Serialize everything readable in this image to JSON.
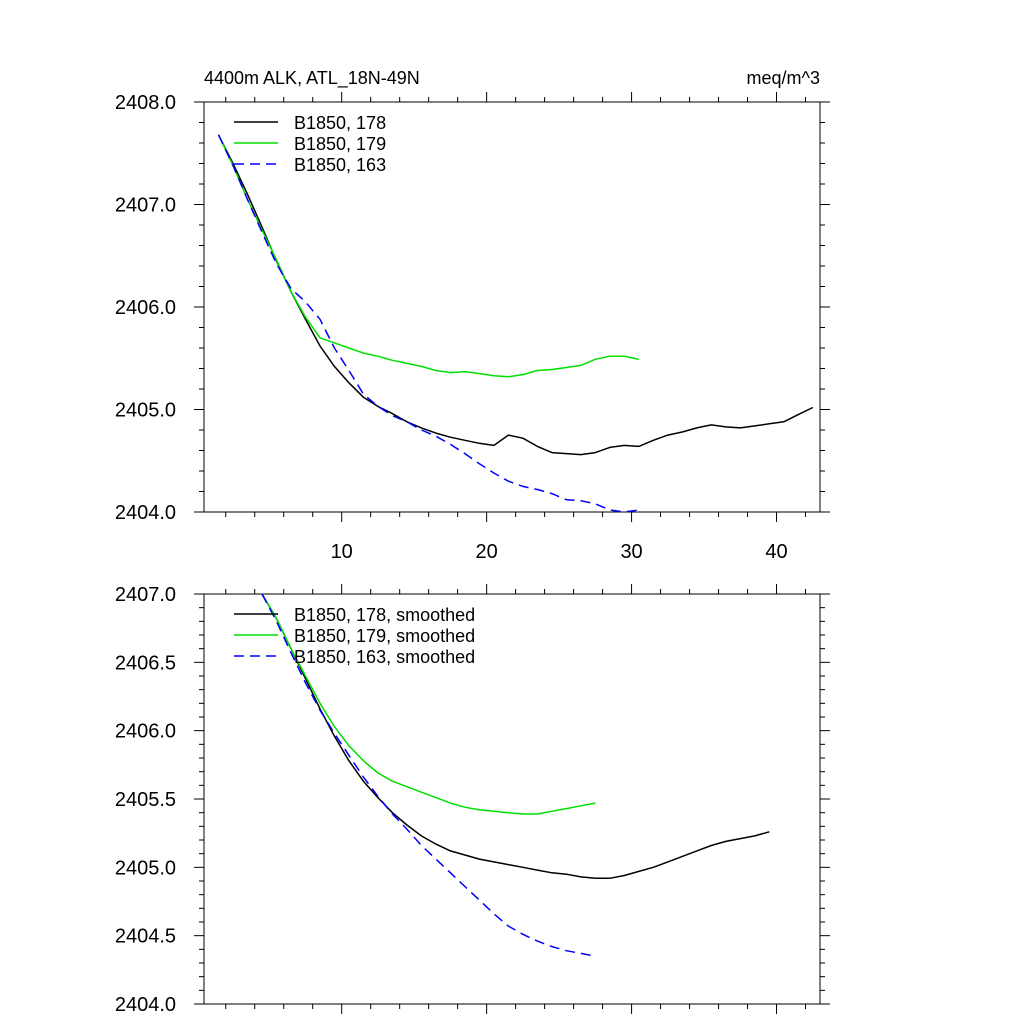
{
  "chart_data": [
    {
      "type": "line",
      "title_left": "4400m ALK, ATL_18N-49N",
      "title_right": "meq/m^3",
      "xlim": [
        0.5,
        43
      ],
      "ylim": [
        2404.0,
        2408.0
      ],
      "y_ticks": [
        2404.0,
        2405.0,
        2406.0,
        2407.0,
        2408.0
      ],
      "y_tick_labels": [
        "2404.0",
        "2405.0",
        "2406.0",
        "2407.0",
        "2408.0"
      ],
      "x_ticks": [
        10,
        20,
        30,
        40
      ],
      "x_tick_labels": [
        "10",
        "20",
        "30",
        "40"
      ],
      "legend_position": "top-left",
      "series": [
        {
          "name": "B1850, 178",
          "color": "#000000",
          "dash": "solid",
          "x": [
            1.5,
            2.5,
            3.5,
            4.5,
            5.5,
            6.5,
            7.5,
            8.5,
            9.5,
            10.5,
            11.5,
            12.5,
            13.5,
            14.5,
            15.5,
            16.5,
            17.5,
            18.5,
            19.5,
            20.5,
            21.5,
            22.5,
            23.5,
            24.5,
            25.5,
            26.5,
            27.5,
            28.5,
            29.5,
            30.5,
            31.5,
            32.5,
            33.5,
            34.5,
            35.5,
            36.5,
            37.5,
            38.5,
            39.5,
            40.5,
            41.5,
            42.5
          ],
          "y": [
            2407.68,
            2407.4,
            2407.1,
            2406.78,
            2406.45,
            2406.15,
            2405.88,
            2405.62,
            2405.42,
            2405.26,
            2405.12,
            2405.03,
            2404.96,
            2404.88,
            2404.82,
            2404.77,
            2404.73,
            2404.7,
            2404.67,
            2404.65,
            2404.75,
            2404.72,
            2404.64,
            2404.58,
            2404.57,
            2404.56,
            2404.58,
            2404.63,
            2404.65,
            2404.64,
            2404.7,
            2404.75,
            2404.78,
            2404.82,
            2404.85,
            2404.83,
            2404.82,
            2404.84,
            2404.86,
            2404.88,
            2404.95,
            2405.02
          ]
        },
        {
          "name": "B1850, 179",
          "color": "#00e000",
          "dash": "solid",
          "x": [
            1.5,
            2.5,
            3.5,
            4.5,
            5.5,
            6.5,
            7.5,
            8.5,
            9.5,
            10.5,
            11.5,
            12.5,
            13.5,
            14.5,
            15.5,
            16.5,
            17.5,
            18.5,
            19.5,
            20.5,
            21.5,
            22.5,
            23.5,
            24.5,
            25.5,
            26.5,
            27.5,
            28.5,
            29.5,
            30.5
          ],
          "y": [
            2407.68,
            2407.38,
            2407.05,
            2406.75,
            2406.46,
            2406.15,
            2405.9,
            2405.7,
            2405.65,
            2405.6,
            2405.55,
            2405.52,
            2405.48,
            2405.45,
            2405.42,
            2405.38,
            2405.36,
            2405.37,
            2405.35,
            2405.33,
            2405.32,
            2405.34,
            2405.38,
            2405.39,
            2405.41,
            2405.43,
            2405.49,
            2405.52,
            2405.52,
            2405.49
          ]
        },
        {
          "name": "B1850, 163",
          "color": "#0000ff",
          "dash": "dashed",
          "x": [
            1.5,
            2.5,
            3.5,
            4.5,
            5.5,
            6.5,
            7.5,
            8.5,
            9.5,
            10.5,
            11.5,
            12.5,
            13.5,
            14.5,
            15.5,
            16.5,
            17.5,
            18.5,
            19.5,
            20.5,
            21.5,
            22.5,
            23.5,
            24.5,
            25.5,
            26.5,
            27.5,
            28.5,
            29.5,
            30.5
          ],
          "y": [
            2407.68,
            2407.38,
            2407.05,
            2406.73,
            2406.42,
            2406.18,
            2406.05,
            2405.88,
            2405.6,
            2405.38,
            2405.15,
            2405.03,
            2404.94,
            2404.88,
            2404.8,
            2404.74,
            2404.66,
            2404.57,
            2404.47,
            2404.38,
            2404.3,
            2404.25,
            2404.22,
            2404.18,
            2404.12,
            2404.11,
            2404.08,
            2404.02,
            2404.0,
            2404.02
          ]
        }
      ]
    },
    {
      "type": "line",
      "xlim": [
        0.5,
        43
      ],
      "ylim": [
        2404.0,
        2407.0
      ],
      "y_ticks": [
        2404.0,
        2404.5,
        2405.0,
        2405.5,
        2406.0,
        2406.5,
        2407.0
      ],
      "y_tick_labels": [
        "2404.0",
        "2404.5",
        "2405.0",
        "2405.5",
        "2406.0",
        "2406.5",
        "2407.0"
      ],
      "x_ticks": [
        10,
        20,
        30,
        40
      ],
      "x_tick_labels": [],
      "legend_position": "top-left",
      "series": [
        {
          "name": "B1850, 178, smoothed",
          "color": "#000000",
          "dash": "solid",
          "x": [
            4.5,
            5.5,
            6.5,
            7.5,
            8.5,
            9.5,
            10.5,
            11.5,
            12.5,
            13.5,
            14.5,
            15.5,
            16.5,
            17.5,
            18.5,
            19.5,
            20.5,
            21.5,
            22.5,
            23.5,
            24.5,
            25.5,
            26.5,
            27.5,
            28.5,
            29.5,
            30.5,
            31.5,
            32.5,
            33.5,
            34.5,
            35.5,
            36.5,
            37.5,
            38.5,
            39.5
          ],
          "y": [
            2407.0,
            2406.82,
            2406.6,
            2406.38,
            2406.16,
            2405.96,
            2405.78,
            2405.63,
            2405.51,
            2405.4,
            2405.31,
            2405.23,
            2405.17,
            2405.12,
            2405.09,
            2405.06,
            2405.04,
            2405.02,
            2405.0,
            2404.98,
            2404.96,
            2404.95,
            2404.93,
            2404.92,
            2404.92,
            2404.94,
            2404.97,
            2405.0,
            2405.04,
            2405.08,
            2405.12,
            2405.16,
            2405.19,
            2405.21,
            2405.23,
            2405.26
          ]
        },
        {
          "name": "B1850, 179, smoothed",
          "color": "#00e000",
          "dash": "solid",
          "x": [
            4.5,
            5.5,
            6.5,
            7.5,
            8.5,
            9.5,
            10.5,
            11.5,
            12.5,
            13.5,
            14.5,
            15.5,
            16.5,
            17.5,
            18.5,
            19.5,
            20.5,
            21.5,
            22.5,
            23.5,
            24.5,
            25.5,
            26.5,
            27.5
          ],
          "y": [
            2407.0,
            2406.82,
            2406.6,
            2406.4,
            2406.2,
            2406.03,
            2405.89,
            2405.78,
            2405.69,
            2405.63,
            2405.59,
            2405.55,
            2405.51,
            2405.47,
            2405.44,
            2405.42,
            2405.41,
            2405.4,
            2405.39,
            2405.39,
            2405.41,
            2405.43,
            2405.45,
            2405.47
          ]
        },
        {
          "name": "B1850, 163, smoothed",
          "color": "#0000ff",
          "dash": "dashed",
          "x": [
            4.5,
            5.5,
            6.5,
            7.5,
            8.5,
            9.5,
            10.5,
            11.5,
            12.5,
            13.5,
            14.5,
            15.5,
            16.5,
            17.5,
            18.5,
            19.5,
            20.5,
            21.5,
            22.5,
            23.5,
            24.5,
            25.5,
            26.5,
            27.5
          ],
          "y": [
            2407.0,
            2406.8,
            2406.57,
            2406.35,
            2406.15,
            2405.98,
            2405.82,
            2405.66,
            2405.52,
            2405.39,
            2405.28,
            2405.16,
            2405.06,
            2404.96,
            2404.86,
            2404.76,
            2404.66,
            2404.57,
            2404.51,
            2404.46,
            2404.42,
            2404.39,
            2404.37,
            2404.35
          ]
        }
      ]
    }
  ]
}
